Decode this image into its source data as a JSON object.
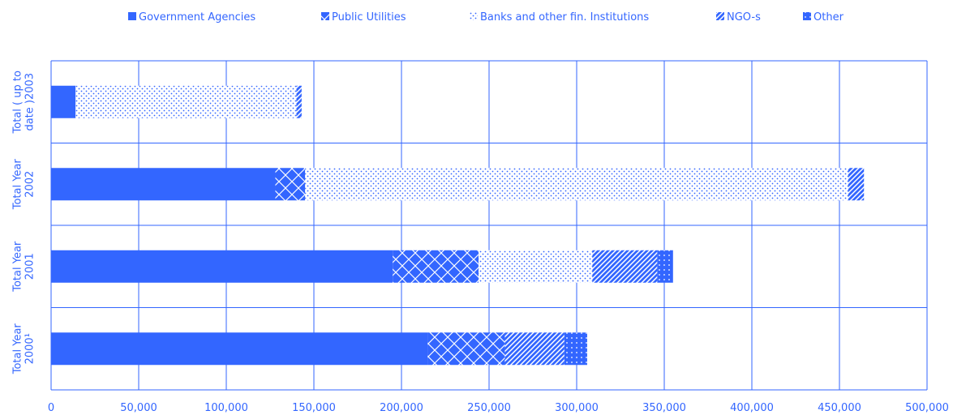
{
  "chart_data": {
    "type": "bar",
    "orientation": "horizontal",
    "stacked": true,
    "categories": [
      [
        "Total ( up to",
        "date )2003"
      ],
      [
        "Total Year",
        "2002"
      ],
      [
        "Total Year",
        "2001"
      ],
      [
        "Total Year",
        "2000¹"
      ]
    ],
    "series": [
      {
        "name": "Government Agencies",
        "values": [
          14000,
          128000,
          195000,
          215000
        ]
      },
      {
        "name": "Public Utilities",
        "values": [
          0,
          17000,
          49000,
          44000
        ]
      },
      {
        "name": "Banks and other fin. Institutions",
        "values": [
          126000,
          310000,
          65000,
          0
        ]
      },
      {
        "name": "NGO-s",
        "values": [
          3000,
          9000,
          37000,
          34000
        ]
      },
      {
        "name": "Other",
        "values": [
          0,
          0,
          9000,
          13000
        ]
      }
    ],
    "x_ticks": [
      "0",
      "50,000",
      "100,000",
      "150,000",
      "200,000",
      "250,000",
      "300,000",
      "350,000",
      "400,000",
      "450,000",
      "500,000"
    ],
    "xlim": [
      0,
      500000
    ],
    "grid": true,
    "legend_position": "top",
    "colors": {
      "accent": "#3366ff",
      "background": "#ffffff"
    }
  }
}
